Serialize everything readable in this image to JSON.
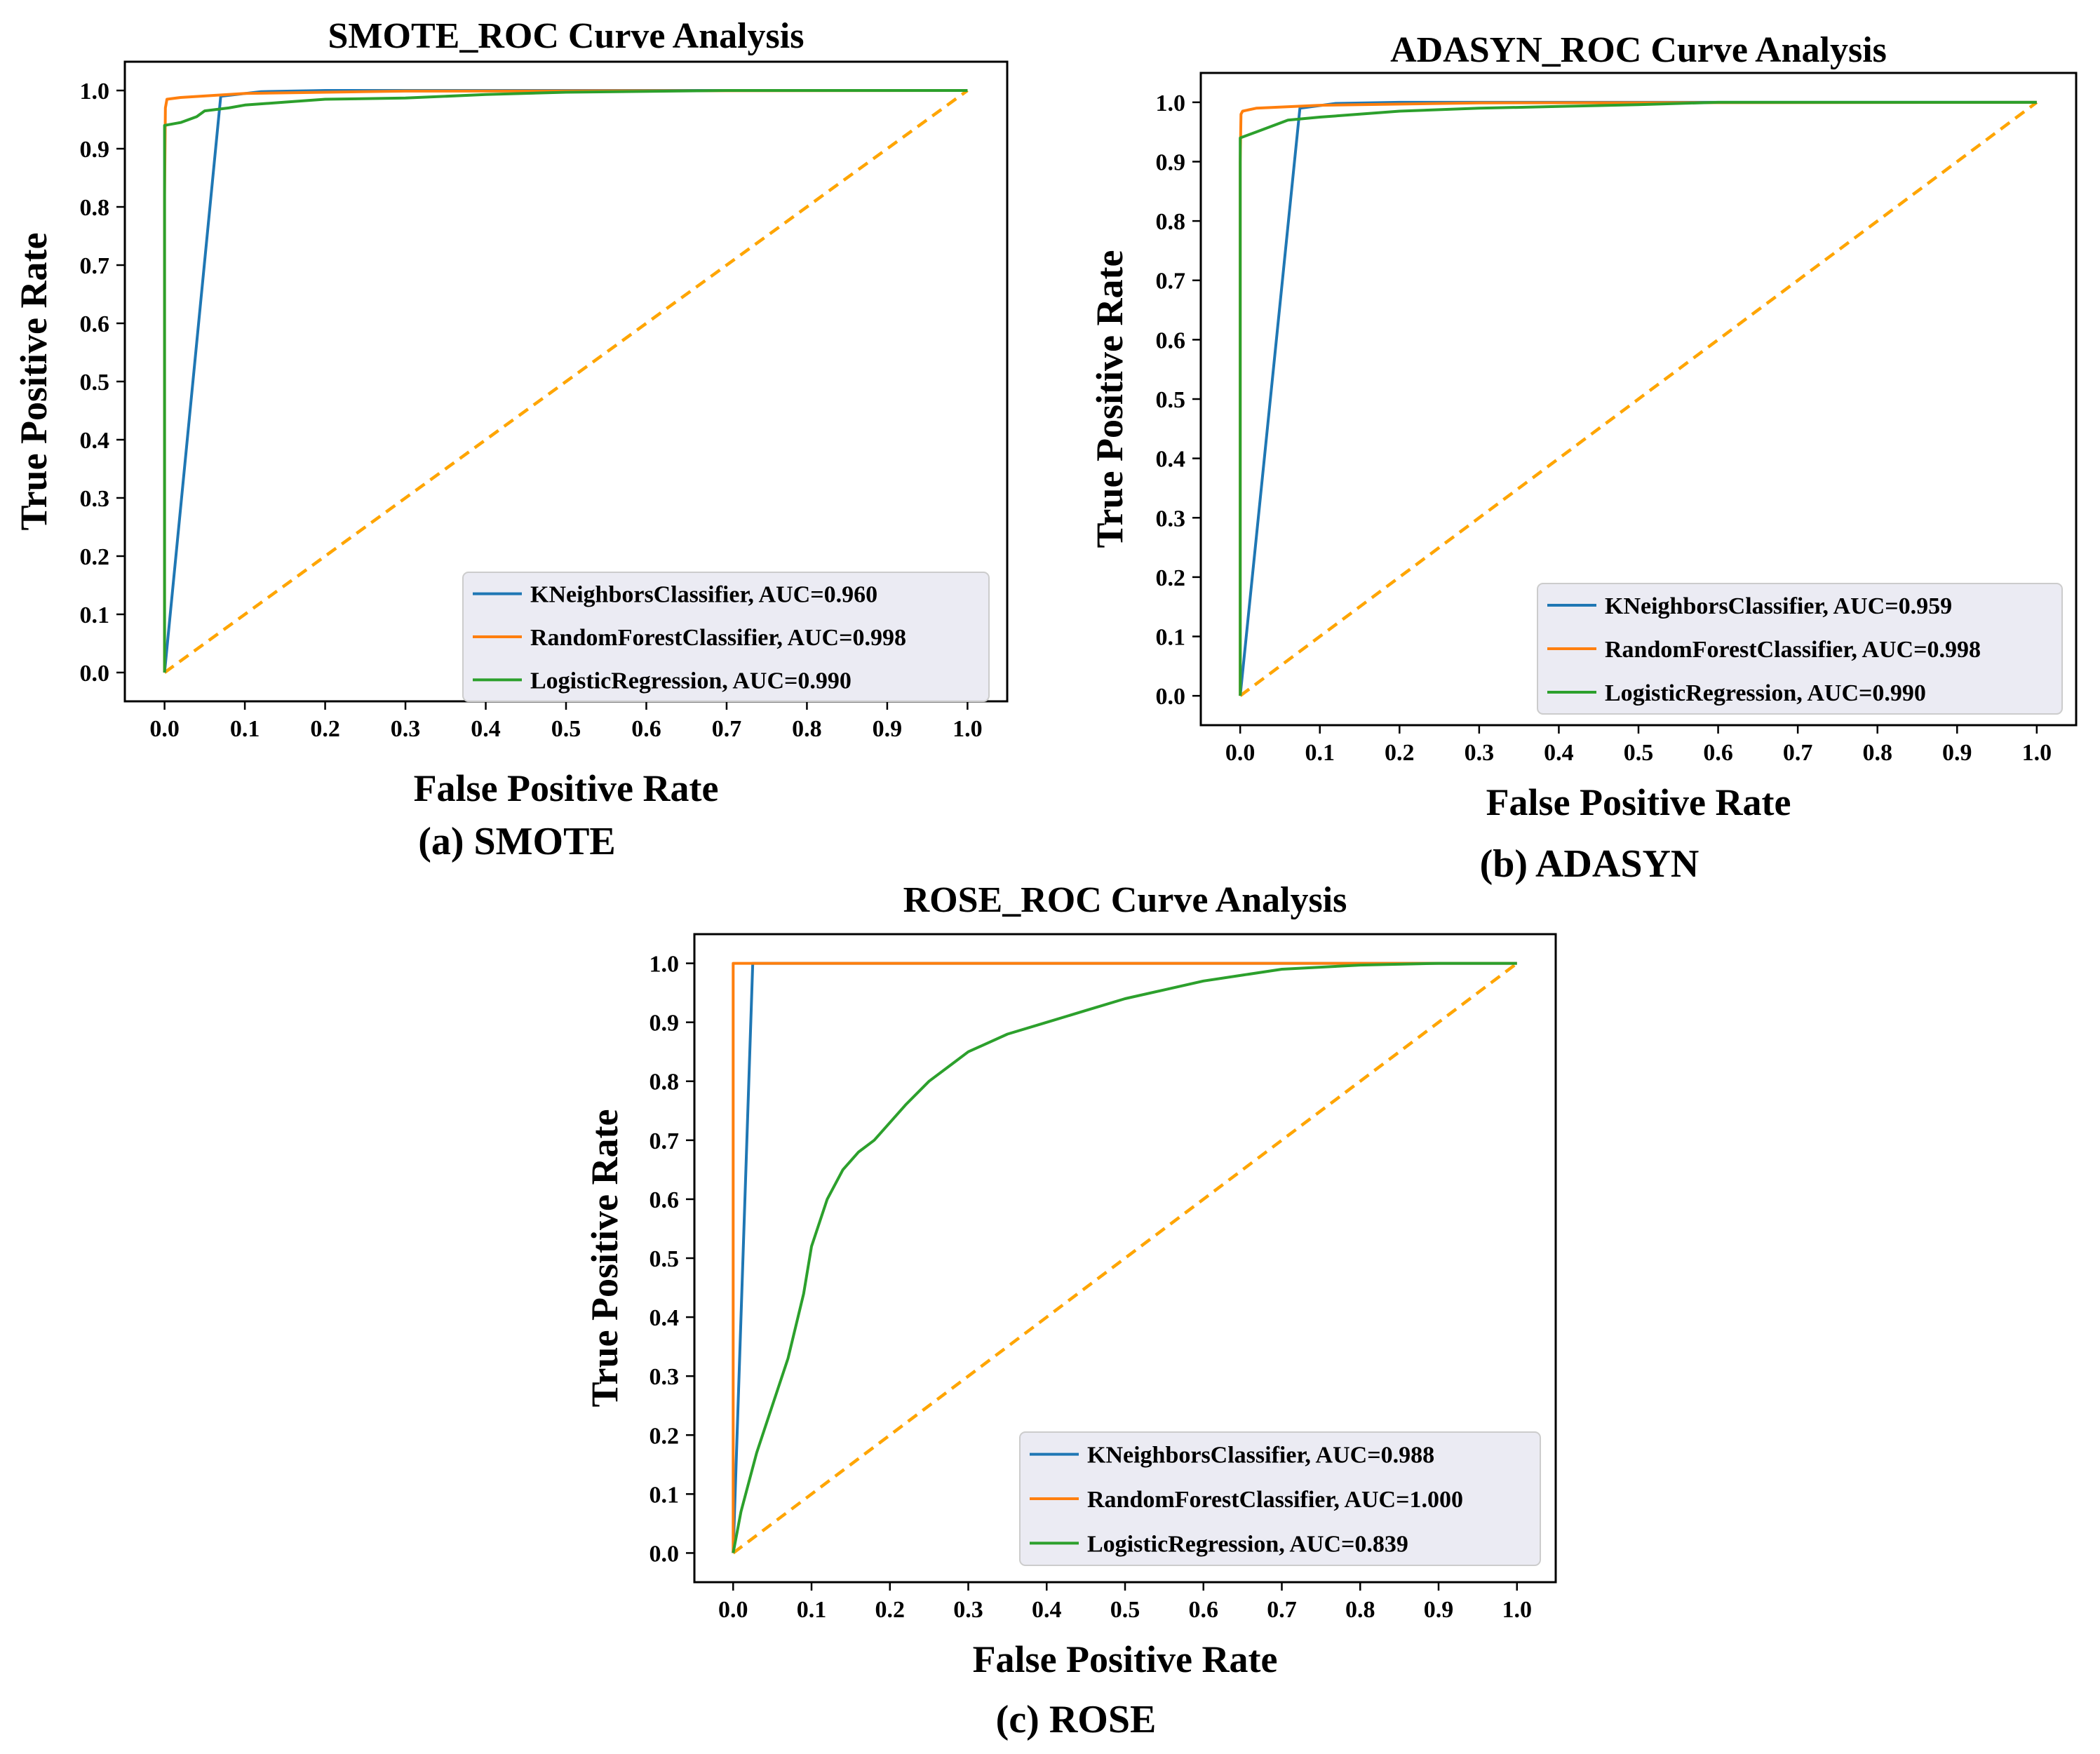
{
  "chart_data": [
    {
      "type": "line",
      "title": "SMOTE_ROC Curve Analysis",
      "caption": "(a) SMOTE",
      "xlabel": "False Positive Rate",
      "ylabel": "True Positive Rate",
      "xlim": [
        0,
        1
      ],
      "ylim": [
        0,
        1
      ],
      "xticks": [
        "0.0",
        "0.1",
        "0.2",
        "0.3",
        "0.4",
        "0.5",
        "0.6",
        "0.7",
        "0.8",
        "0.9",
        "1.0"
      ],
      "yticks": [
        "0.0",
        "0.1",
        "0.2",
        "0.3",
        "0.4",
        "0.5",
        "0.6",
        "0.7",
        "0.8",
        "0.9",
        "1.0"
      ],
      "legend_position": "lower-right",
      "series": [
        {
          "name": "KNeighborsClassifier, AUC=0.960",
          "color": "#1f77b4",
          "x": [
            0,
            0.07,
            0.12,
            0.2,
            1.0
          ],
          "y": [
            0,
            0.99,
            0.998,
            1.0,
            1.0
          ]
        },
        {
          "name": "RandomForestClassifier, AUC=0.998",
          "color": "#ff7f0e",
          "x": [
            0,
            0,
            0.001,
            0.003,
            0.02,
            0.1,
            0.3,
            1.0
          ],
          "y": [
            0,
            0.82,
            0.97,
            0.985,
            0.988,
            0.995,
            0.999,
            1.0
          ]
        },
        {
          "name": "LogisticRegression, AUC=0.990",
          "color": "#2ca02c",
          "x": [
            0,
            0,
            0.02,
            0.04,
            0.05,
            0.08,
            0.1,
            0.15,
            0.2,
            0.3,
            0.4,
            0.5,
            0.7,
            1.0
          ],
          "y": [
            0,
            0.94,
            0.945,
            0.955,
            0.965,
            0.97,
            0.975,
            0.98,
            0.985,
            0.987,
            0.993,
            0.997,
            1.0,
            1.0
          ]
        },
        {
          "name": "",
          "color": "#ffa500",
          "dashed": true,
          "x": [
            0,
            1
          ],
          "y": [
            0,
            1
          ]
        }
      ]
    },
    {
      "type": "line",
      "title": "ADASYN_ROC Curve Analysis",
      "caption": "(b) ADASYN",
      "xlabel": "False Positive Rate",
      "ylabel": "True Positive Rate",
      "xlim": [
        0,
        1
      ],
      "ylim": [
        0,
        1
      ],
      "xticks": [
        "0.0",
        "0.1",
        "0.2",
        "0.3",
        "0.4",
        "0.5",
        "0.6",
        "0.7",
        "0.8",
        "0.9",
        "1.0"
      ],
      "yticks": [
        "0.0",
        "0.1",
        "0.2",
        "0.3",
        "0.4",
        "0.5",
        "0.6",
        "0.7",
        "0.8",
        "0.9",
        "1.0"
      ],
      "legend_position": "lower-right",
      "series": [
        {
          "name": "KNeighborsClassifier, AUC=0.959",
          "color": "#1f77b4",
          "x": [
            0,
            0.075,
            0.12,
            0.2,
            1.0
          ],
          "y": [
            0,
            0.99,
            0.998,
            1.0,
            1.0
          ]
        },
        {
          "name": "RandomForestClassifier, AUC=0.998",
          "color": "#ff7f0e",
          "x": [
            0,
            0,
            0.001,
            0.003,
            0.02,
            0.1,
            0.3,
            1.0
          ],
          "y": [
            0,
            0.9,
            0.98,
            0.985,
            0.99,
            0.995,
            0.999,
            1.0
          ]
        },
        {
          "name": "LogisticRegression, AUC=0.990",
          "color": "#2ca02c",
          "x": [
            0,
            0,
            0.02,
            0.04,
            0.06,
            0.1,
            0.15,
            0.2,
            0.3,
            0.4,
            0.5,
            0.6,
            1.0
          ],
          "y": [
            0,
            0.94,
            0.95,
            0.96,
            0.97,
            0.975,
            0.98,
            0.985,
            0.99,
            0.993,
            0.996,
            1.0,
            1.0
          ]
        },
        {
          "name": "",
          "color": "#ffa500",
          "dashed": true,
          "x": [
            0,
            1
          ],
          "y": [
            0,
            1
          ]
        }
      ]
    },
    {
      "type": "line",
      "title": "ROSE_ROC Curve Analysis",
      "caption": "(c) ROSE",
      "xlabel": "False Positive Rate",
      "ylabel": "True Positive Rate",
      "xlim": [
        0,
        1
      ],
      "ylim": [
        0,
        1
      ],
      "xticks": [
        "0.0",
        "0.1",
        "0.2",
        "0.3",
        "0.4",
        "0.5",
        "0.6",
        "0.7",
        "0.8",
        "0.9",
        "1.0"
      ],
      "yticks": [
        "0.0",
        "0.1",
        "0.2",
        "0.3",
        "0.4",
        "0.5",
        "0.6",
        "0.7",
        "0.8",
        "0.9",
        "1.0"
      ],
      "legend_position": "lower-right",
      "series": [
        {
          "name": "KNeighborsClassifier, AUC=0.988",
          "color": "#1f77b4",
          "x": [
            0,
            0.025,
            1.0
          ],
          "y": [
            0,
            1.0,
            1.0
          ]
        },
        {
          "name": "RandomForestClassifier, AUC=1.000",
          "color": "#ff7f0e",
          "x": [
            0,
            0,
            1.0
          ],
          "y": [
            0,
            1.0,
            1.0
          ]
        },
        {
          "name": "LogisticRegression, AUC=0.839",
          "color": "#2ca02c",
          "x": [
            0,
            0.01,
            0.02,
            0.03,
            0.05,
            0.07,
            0.09,
            0.1,
            0.12,
            0.14,
            0.16,
            0.18,
            0.2,
            0.22,
            0.25,
            0.28,
            0.3,
            0.35,
            0.4,
            0.45,
            0.5,
            0.55,
            0.6,
            0.65,
            0.7,
            0.8,
            0.9,
            1.0
          ],
          "y": [
            0,
            0.07,
            0.12,
            0.17,
            0.25,
            0.33,
            0.44,
            0.52,
            0.6,
            0.65,
            0.68,
            0.7,
            0.73,
            0.76,
            0.8,
            0.83,
            0.85,
            0.88,
            0.9,
            0.92,
            0.94,
            0.955,
            0.97,
            0.98,
            0.99,
            0.997,
            1.0,
            1.0
          ]
        },
        {
          "name": "",
          "color": "#ffa500",
          "dashed": true,
          "x": [
            0,
            1
          ],
          "y": [
            0,
            1
          ]
        }
      ]
    }
  ]
}
